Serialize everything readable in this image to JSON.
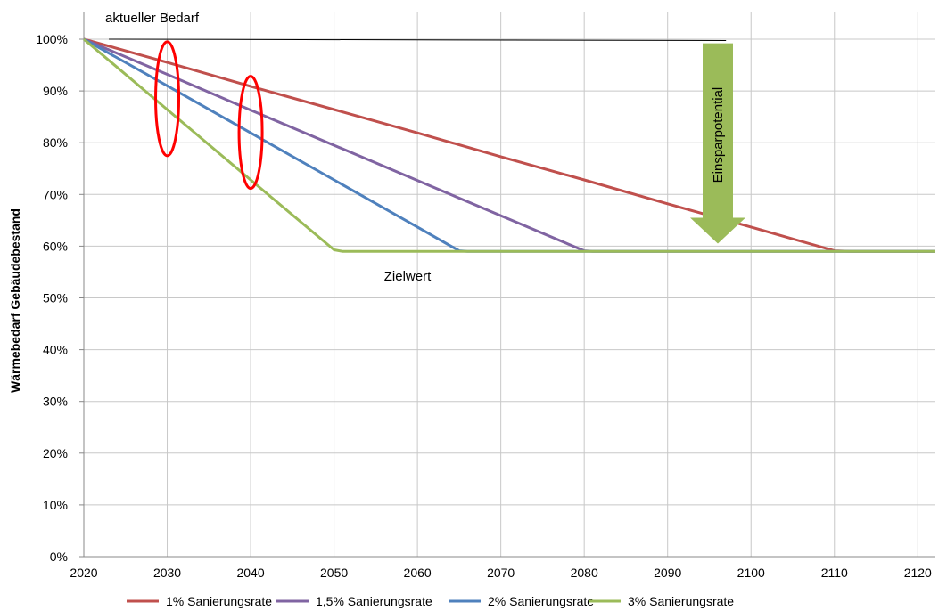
{
  "chart_data": {
    "type": "line",
    "xlabel": "",
    "ylabel": "Wärmebedarf Gebäudebestand",
    "xlim": [
      2020,
      2122
    ],
    "ylim": [
      0,
      100
    ],
    "x_ticks": [
      "2020",
      "2030",
      "2040",
      "2050",
      "2060",
      "2070",
      "2080",
      "2090",
      "2100",
      "2110",
      "2120"
    ],
    "y_ticks": [
      "0%",
      "10%",
      "20%",
      "30%",
      "40%",
      "50%",
      "60%",
      "70%",
      "80%",
      "90%",
      "100%"
    ],
    "grid": true,
    "legend_position": "bottom",
    "series": [
      {
        "name": "1% Sanierungsrate",
        "color": "#c0504d",
        "points": [
          [
            2020,
            100
          ],
          [
            2030,
            95.5
          ],
          [
            2040,
            90.9
          ],
          [
            2050,
            86.4
          ],
          [
            2060,
            81.9
          ],
          [
            2070,
            77.3
          ],
          [
            2080,
            72.8
          ],
          [
            2090,
            68.2
          ],
          [
            2100,
            63.7
          ],
          [
            2110,
            59.1
          ],
          [
            2112,
            59
          ],
          [
            2122,
            59
          ]
        ]
      },
      {
        "name": "1,5% Sanierungsrate",
        "color": "#8064a2",
        "points": [
          [
            2020,
            100
          ],
          [
            2030,
            93.2
          ],
          [
            2040,
            86.3
          ],
          [
            2050,
            79.5
          ],
          [
            2060,
            72.7
          ],
          [
            2070,
            65.9
          ],
          [
            2080,
            59.1
          ],
          [
            2081,
            59
          ],
          [
            2122,
            59
          ]
        ]
      },
      {
        "name": "2% Sanierungsrate",
        "color": "#4f81bd",
        "points": [
          [
            2020,
            100
          ],
          [
            2030,
            91
          ],
          [
            2040,
            81.9
          ],
          [
            2050,
            72.8
          ],
          [
            2060,
            63.7
          ],
          [
            2065,
            59.1
          ],
          [
            2066,
            59
          ],
          [
            2122,
            59
          ]
        ]
      },
      {
        "name": "3% Sanierungsrate",
        "color": "#9bbb59",
        "points": [
          [
            2020,
            100
          ],
          [
            2030,
            86.4
          ],
          [
            2040,
            72.8
          ],
          [
            2050,
            59.3
          ],
          [
            2051,
            59
          ],
          [
            2122,
            59
          ]
        ]
      }
    ],
    "reference_line": {
      "label": "aktueller Bedarf",
      "y": 100,
      "x_range": [
        2023,
        2097
      ]
    },
    "annotations": {
      "target": "Zielwert",
      "savings": "Einsparpotential"
    },
    "highlight_years": [
      2030,
      2040
    ]
  }
}
